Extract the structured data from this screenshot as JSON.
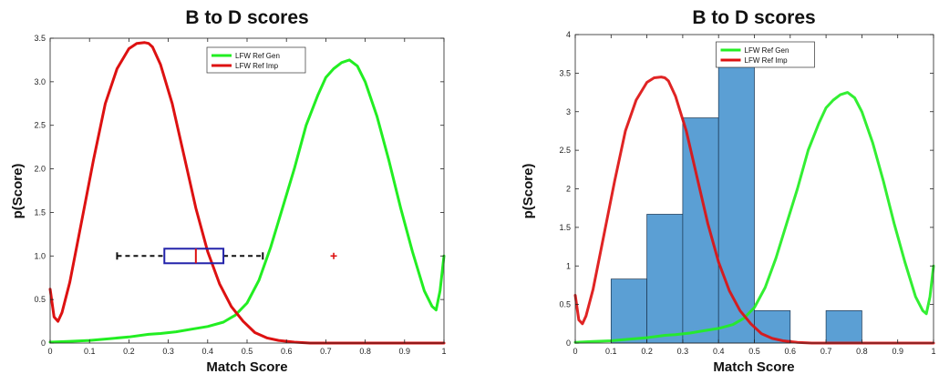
{
  "chart_data": [
    {
      "type": "line",
      "title": "B to D scores",
      "xlabel": "Match Score",
      "ylabel": "p(Score)",
      "xlim": [
        0,
        1
      ],
      "ylim": [
        0,
        3.5
      ],
      "xticks": [
        "0",
        "0.1",
        "0.2",
        "0.3",
        "0.4",
        "0.5",
        "0.6",
        "0.7",
        "0.8",
        "0.9",
        "1"
      ],
      "yticks": [
        "0",
        "0.5",
        "1.0",
        "1.5",
        "2.0",
        "2.5",
        "3.0",
        "3.5"
      ],
      "legend_position": "top-center",
      "series": [
        {
          "name": "LFW Ref Gen",
          "color": "#22ee22",
          "x": [
            0.0,
            0.05,
            0.1,
            0.15,
            0.2,
            0.25,
            0.28,
            0.32,
            0.36,
            0.4,
            0.44,
            0.47,
            0.5,
            0.53,
            0.56,
            0.59,
            0.62,
            0.65,
            0.68,
            0.7,
            0.72,
            0.74,
            0.76,
            0.78,
            0.8,
            0.83,
            0.86,
            0.89,
            0.92,
            0.95,
            0.97,
            0.98,
            0.99,
            1.0
          ],
          "y": [
            0.01,
            0.02,
            0.03,
            0.05,
            0.07,
            0.1,
            0.11,
            0.13,
            0.16,
            0.19,
            0.24,
            0.32,
            0.46,
            0.72,
            1.1,
            1.55,
            2.0,
            2.5,
            2.85,
            3.05,
            3.15,
            3.22,
            3.25,
            3.18,
            3.0,
            2.6,
            2.1,
            1.55,
            1.05,
            0.6,
            0.42,
            0.38,
            0.6,
            1.0
          ]
        },
        {
          "name": "LFW Ref Imp",
          "color": "#dd1111",
          "x": [
            0.0,
            0.01,
            0.02,
            0.03,
            0.05,
            0.08,
            0.11,
            0.14,
            0.17,
            0.2,
            0.22,
            0.24,
            0.25,
            0.26,
            0.28,
            0.31,
            0.34,
            0.37,
            0.4,
            0.43,
            0.46,
            0.49,
            0.52,
            0.55,
            0.58,
            0.62,
            0.66,
            0.7,
            0.8,
            0.9,
            1.0
          ],
          "y": [
            0.62,
            0.3,
            0.25,
            0.35,
            0.7,
            1.4,
            2.1,
            2.75,
            3.15,
            3.38,
            3.44,
            3.45,
            3.44,
            3.4,
            3.2,
            2.75,
            2.15,
            1.55,
            1.05,
            0.68,
            0.42,
            0.25,
            0.12,
            0.06,
            0.03,
            0.01,
            0.0,
            0.0,
            0.0,
            0.0,
            0.0
          ]
        }
      ],
      "boxplot": {
        "y": 1.0,
        "whisker_low": 0.17,
        "q1": 0.29,
        "median": 0.37,
        "q3": 0.44,
        "whisker_high": 0.54,
        "outliers": [
          0.72
        ],
        "box_color": "#2222aa",
        "median_color": "#dd1111",
        "whisker_color": "#111111"
      }
    },
    {
      "type": "line",
      "title": "B to D scores",
      "xlabel": "Match Score",
      "ylabel": "p(Score)",
      "xlim": [
        0,
        1
      ],
      "ylim": [
        0,
        4
      ],
      "xticks": [
        "0",
        "0.1",
        "0.2",
        "0.3",
        "0.4",
        "0.5",
        "0.6",
        "0.7",
        "0.8",
        "0.9",
        "1"
      ],
      "yticks": [
        "0",
        "0.5",
        "1",
        "1.5",
        "2",
        "2.5",
        "3",
        "3.5",
        "4"
      ],
      "legend_position": "top-center",
      "series": [
        {
          "name": "LFW Ref Gen",
          "color": "#22ee22",
          "x": [
            0.0,
            0.05,
            0.1,
            0.15,
            0.2,
            0.25,
            0.28,
            0.32,
            0.36,
            0.4,
            0.44,
            0.47,
            0.5,
            0.53,
            0.56,
            0.59,
            0.62,
            0.65,
            0.68,
            0.7,
            0.72,
            0.74,
            0.76,
            0.78,
            0.8,
            0.83,
            0.86,
            0.89,
            0.92,
            0.95,
            0.97,
            0.98,
            0.99,
            1.0
          ],
          "y": [
            0.01,
            0.02,
            0.03,
            0.05,
            0.07,
            0.1,
            0.11,
            0.13,
            0.16,
            0.19,
            0.24,
            0.32,
            0.46,
            0.72,
            1.1,
            1.55,
            2.0,
            2.5,
            2.85,
            3.05,
            3.15,
            3.22,
            3.25,
            3.18,
            3.0,
            2.6,
            2.1,
            1.55,
            1.05,
            0.6,
            0.42,
            0.38,
            0.6,
            1.0
          ]
        },
        {
          "name": "LFW Ref Imp",
          "color": "#dd1111",
          "x": [
            0.0,
            0.01,
            0.02,
            0.03,
            0.05,
            0.08,
            0.11,
            0.14,
            0.17,
            0.2,
            0.22,
            0.24,
            0.25,
            0.26,
            0.28,
            0.31,
            0.34,
            0.37,
            0.4,
            0.43,
            0.46,
            0.49,
            0.52,
            0.55,
            0.58,
            0.62,
            0.66,
            0.7,
            0.8,
            0.9,
            1.0
          ],
          "y": [
            0.62,
            0.3,
            0.25,
            0.35,
            0.7,
            1.4,
            2.1,
            2.75,
            3.15,
            3.38,
            3.44,
            3.45,
            3.44,
            3.4,
            3.2,
            2.75,
            2.15,
            1.55,
            1.05,
            0.68,
            0.42,
            0.25,
            0.12,
            0.06,
            0.03,
            0.01,
            0.0,
            0.0,
            0.0,
            0.0,
            0.0
          ]
        }
      ],
      "histogram": {
        "color": "#5b9fd4",
        "edge_color": "#1a3550",
        "bins": [
          {
            "start": 0.1,
            "end": 0.2,
            "value": 0.83
          },
          {
            "start": 0.2,
            "end": 0.3,
            "value": 1.67
          },
          {
            "start": 0.3,
            "end": 0.4,
            "value": 2.92
          },
          {
            "start": 0.4,
            "end": 0.5,
            "value": 3.6
          },
          {
            "start": 0.5,
            "end": 0.6,
            "value": 0.42
          },
          {
            "start": 0.7,
            "end": 0.8,
            "value": 0.42
          }
        ]
      }
    }
  ]
}
